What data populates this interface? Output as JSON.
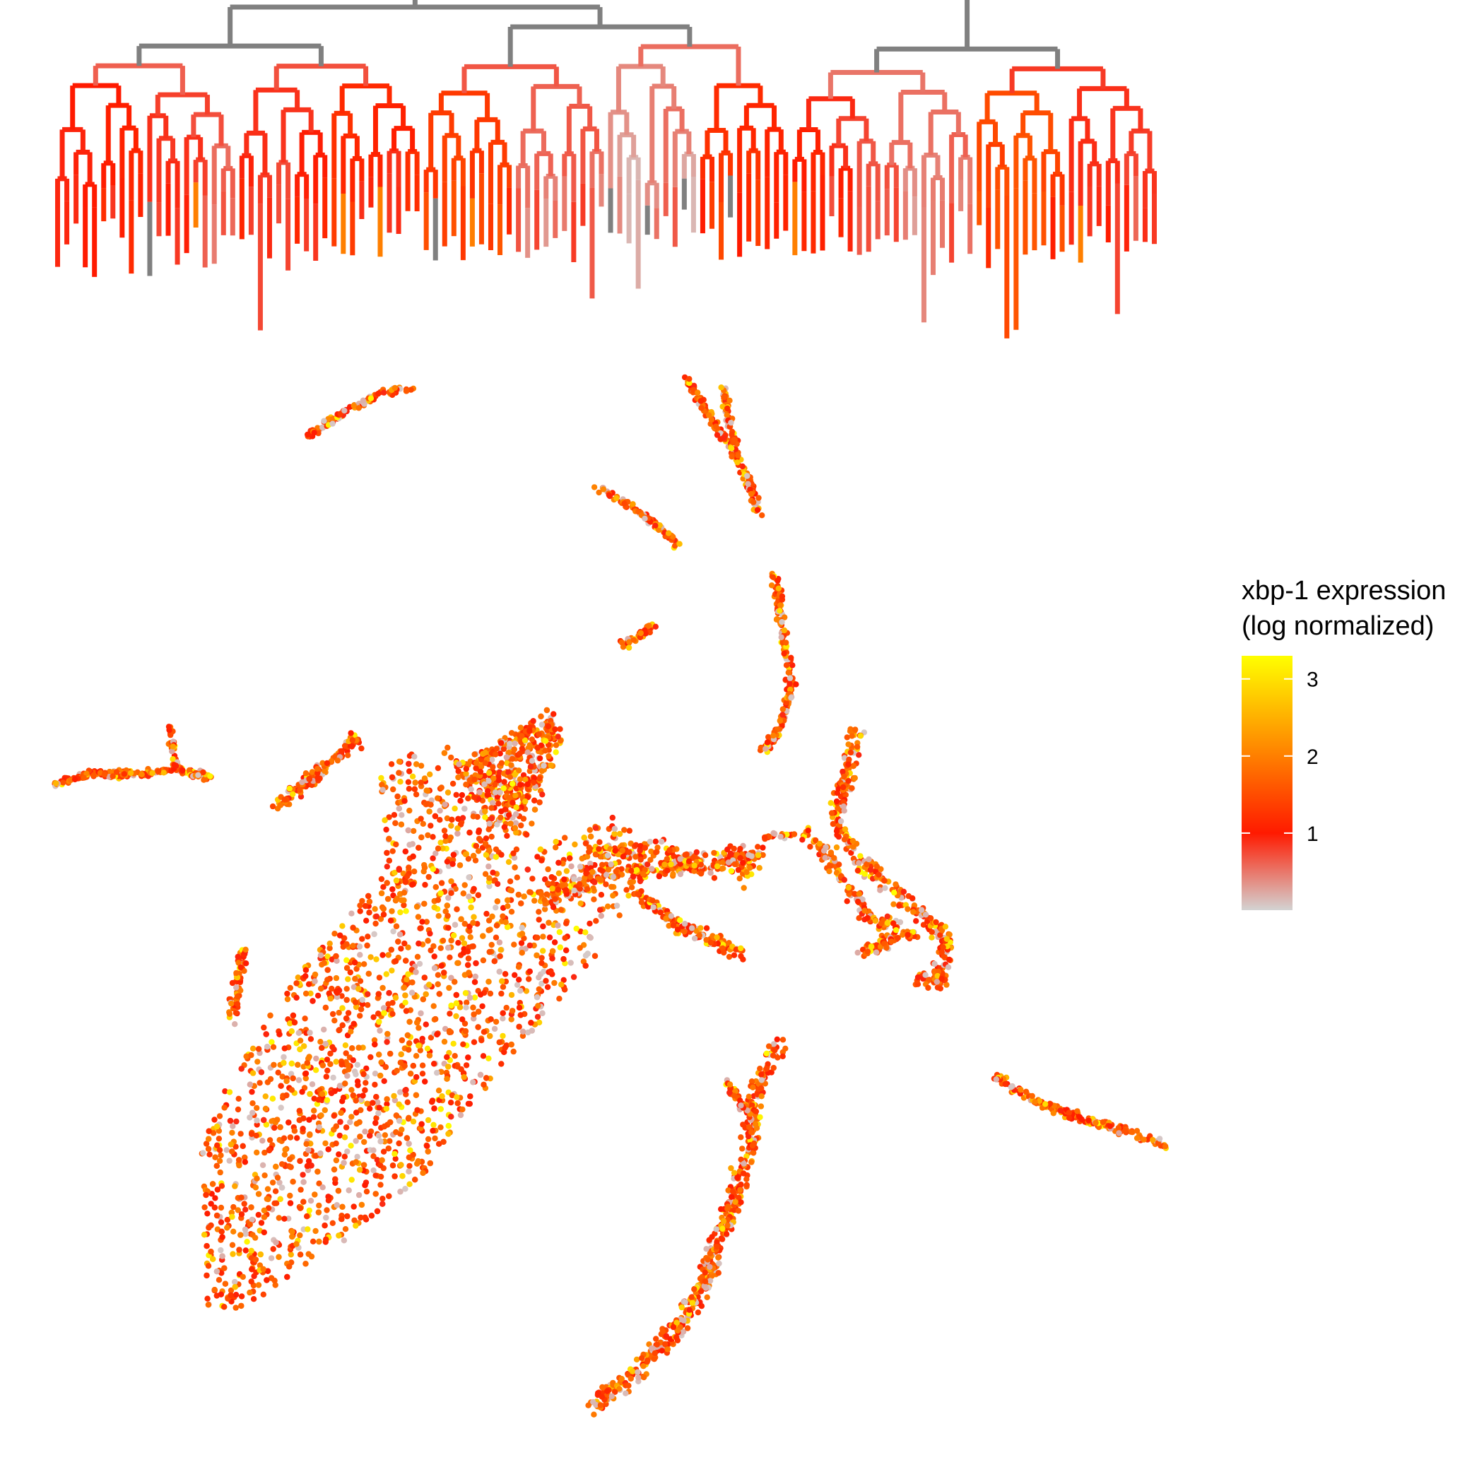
{
  "chart_data": [
    {
      "type": "dendrogram",
      "title": "",
      "color_scale_note": "branches colored by mean xbp-1 expression; grey = no data",
      "leaf_count": 120
    },
    {
      "type": "scatter",
      "title": "",
      "xlabel": "",
      "ylabel": "",
      "axes_visible": false,
      "grid": false,
      "point_color_variable": "xbp-1 expression (log normalized)",
      "color_range": [
        0,
        3.3
      ],
      "legend": {
        "title_line1": "xbp-1 expression",
        "title_line2": "(log normalized)",
        "position": "right",
        "ticks": [
          {
            "value": 1,
            "label": "1"
          },
          {
            "value": 2,
            "label": "2"
          },
          {
            "value": 3,
            "label": "3"
          }
        ],
        "gradient_stops": [
          {
            "value": 0.0,
            "color": "#d3d3d3"
          },
          {
            "value": 1.0,
            "color": "#ff1a00"
          },
          {
            "value": 2.0,
            "color": "#ff7f00"
          },
          {
            "value": 3.3,
            "color": "#ffff00"
          }
        ]
      }
    }
  ],
  "colors": {
    "no_data": "#808080",
    "low": "#d3d3d3",
    "mid": "#ff1a00",
    "high": "#ffff00"
  }
}
